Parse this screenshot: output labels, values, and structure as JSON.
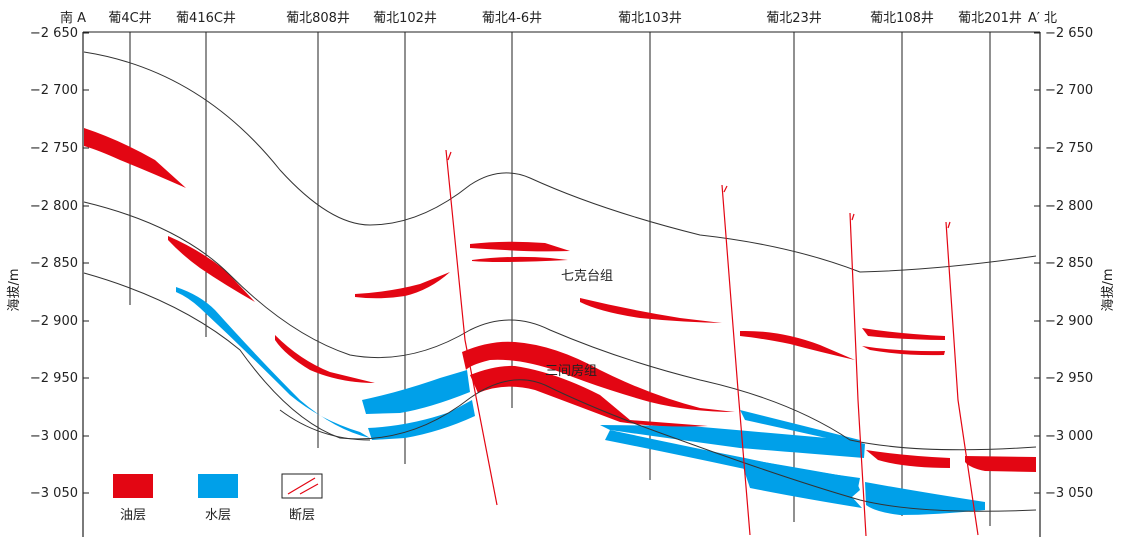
{
  "header": {
    "south": "南 A",
    "north": "A′ 北"
  },
  "wells": [
    "葡4C井",
    "葡416C井",
    "葡北808井",
    "葡北102井",
    "葡北4-6井",
    "葡北103井",
    "葡北23井",
    "葡北108井",
    "葡北201井"
  ],
  "axis": {
    "left_title": "海拔/m",
    "right_title": "海拔/m",
    "ticks": [
      "−2 650",
      "−2 700",
      "−2 750",
      "−2 800",
      "−2 850",
      "−2 900",
      "−2 950",
      "−3 000",
      "−3 050"
    ]
  },
  "formations": {
    "upper": "七克台组",
    "lower": "三间房组"
  },
  "legend": {
    "oil": "油层",
    "water": "水层",
    "fault": "断层"
  },
  "colors": {
    "oil": "#e30613",
    "water": "#00a0e9",
    "fault": "#e30613",
    "line": "#333333"
  }
}
